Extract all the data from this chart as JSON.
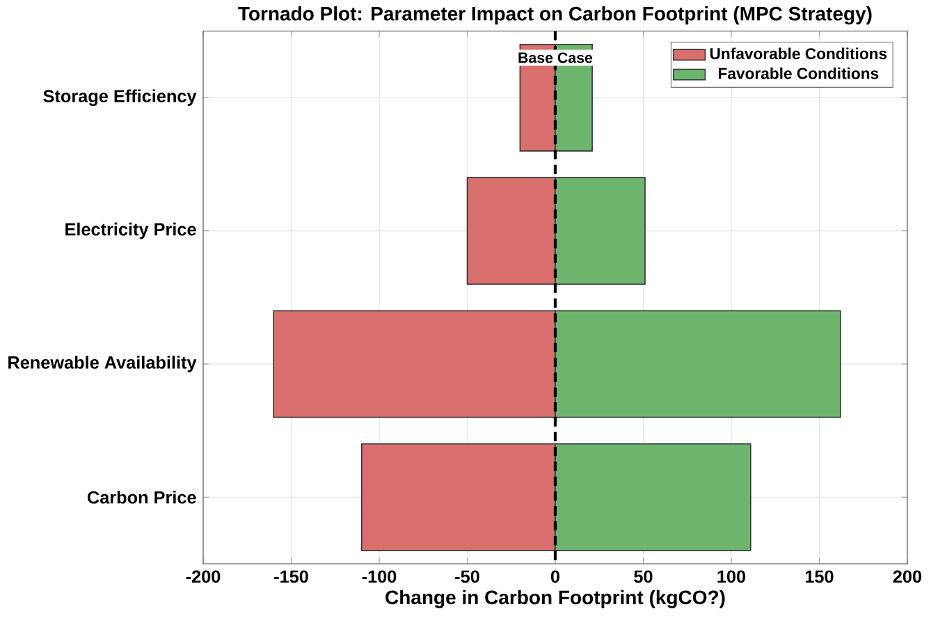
{
  "chart_data": {
    "type": "bar",
    "orientation": "horizontal",
    "title": "Tornado Plot: Parameter Impact on Carbon Footprint (MPC Strategy)",
    "xlabel": "Change in Carbon Footprint (kgCO?)",
    "categories": [
      "Storage Efficiency",
      "Electricity Price",
      "Renewable Availability",
      "Carbon Price"
    ],
    "series": [
      {
        "name": "Unfavorable Conditions",
        "color": "#d9706e",
        "values": [
          -20,
          -50,
          -160,
          -110
        ]
      },
      {
        "name": "Favorable Conditions",
        "color": "#6db56d",
        "values": [
          21,
          51,
          162,
          111
        ]
      }
    ],
    "xlim": [
      -200,
      200
    ],
    "xticks": [
      -200,
      -150,
      -100,
      -50,
      0,
      50,
      100,
      150,
      200
    ],
    "ref_lines": [
      {
        "axis": "x",
        "value": 0,
        "label": "Base Case",
        "line_style": "dashed",
        "color": "#000000"
      }
    ],
    "grid": true,
    "legend": "top right",
    "stacked": true
  }
}
